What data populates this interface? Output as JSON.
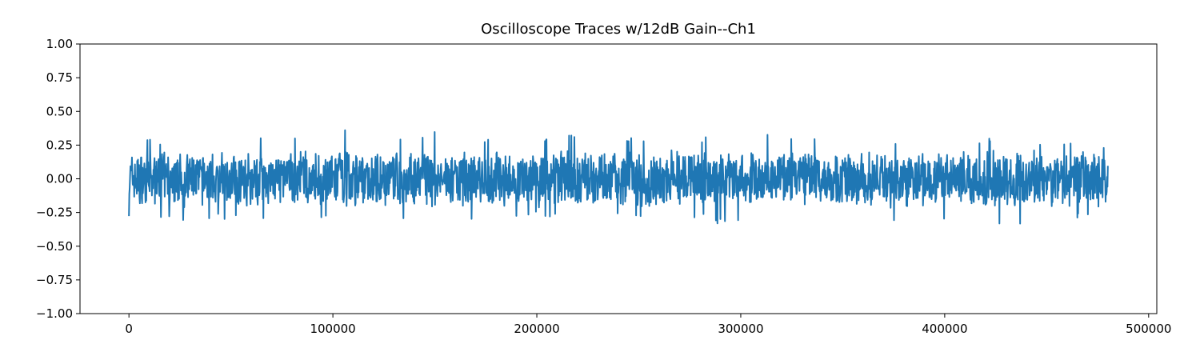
{
  "chart_data": {
    "type": "line",
    "title": "Oscilloscope Traces w/12dB Gain--Ch1",
    "xlabel": "",
    "ylabel": "",
    "xlim": [
      -24000,
      504000
    ],
    "ylim": [
      -1.0,
      1.0
    ],
    "x_ticks": [
      0,
      100000,
      200000,
      300000,
      400000,
      500000
    ],
    "x_tick_labels": [
      "0",
      "100000",
      "200000",
      "300000",
      "400000",
      "500000"
    ],
    "y_ticks": [
      1.0,
      0.75,
      0.5,
      0.25,
      0.0,
      -0.25,
      -0.5,
      -0.75,
      -1.0
    ],
    "y_tick_labels": [
      "1.00",
      "0.75",
      "0.50",
      "0.25",
      "0.00",
      "−0.25",
      "−0.50",
      "−0.75",
      "−1.00"
    ],
    "grid": false,
    "series": [
      {
        "color": "#1f77b4",
        "x_range": [
          0,
          480000
        ],
        "envelope": {
          "x": [
            0,
            20000,
            40000,
            60000,
            80000,
            100000,
            105000,
            120000,
            125000,
            140000,
            150000,
            160000,
            180000,
            200000,
            220000,
            225000,
            240000,
            260000,
            280000,
            295000,
            298000,
            320000,
            340000,
            360000,
            380000,
            383000,
            400000,
            420000,
            437000,
            440000,
            460000,
            480000
          ],
          "max": [
            0.28,
            0.3,
            0.32,
            0.35,
            0.3,
            0.3,
            0.38,
            0.32,
            0.37,
            0.3,
            0.36,
            0.32,
            0.3,
            0.3,
            0.35,
            0.4,
            0.3,
            0.32,
            0.3,
            0.38,
            0.42,
            0.3,
            0.35,
            0.3,
            0.3,
            0.32,
            0.3,
            0.3,
            0.37,
            0.3,
            0.28,
            0.26
          ],
          "min": [
            -0.28,
            -0.32,
            -0.3,
            -0.3,
            -0.28,
            -0.3,
            -0.32,
            -0.34,
            -0.38,
            -0.3,
            -0.32,
            -0.3,
            -0.3,
            -0.28,
            -0.3,
            -0.32,
            -0.3,
            -0.28,
            -0.3,
            -0.36,
            -0.32,
            -0.3,
            -0.32,
            -0.3,
            -0.36,
            -0.41,
            -0.32,
            -0.33,
            -0.34,
            -0.32,
            -0.3,
            -0.26
          ]
        },
        "body_amplitude": 0.18
      }
    ]
  }
}
